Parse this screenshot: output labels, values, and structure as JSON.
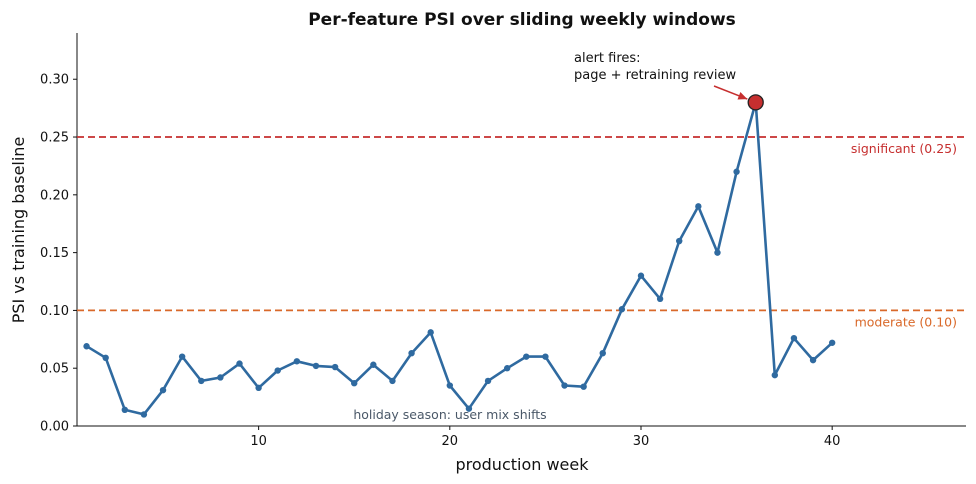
{
  "chart_data": {
    "type": "line",
    "title": "Per-feature PSI over sliding weekly windows",
    "xlabel": "production week",
    "ylabel": "PSI vs training baseline",
    "xlim": [
      0.5,
      47
    ],
    "ylim": [
      0,
      0.34
    ],
    "xticks": [
      10,
      20,
      30,
      40
    ],
    "yticks": [
      0.0,
      0.05,
      0.1,
      0.15,
      0.2,
      0.25,
      0.3
    ],
    "grid": false,
    "line_color": "#2f6aa0",
    "x": [
      1,
      2,
      3,
      4,
      5,
      6,
      7,
      8,
      9,
      10,
      11,
      12,
      13,
      14,
      15,
      16,
      17,
      18,
      19,
      20,
      21,
      22,
      23,
      24,
      25,
      26,
      27,
      28,
      29,
      30,
      31,
      32,
      33,
      34,
      35,
      36,
      37,
      38,
      39,
      40
    ],
    "y": [
      0.069,
      0.059,
      0.014,
      0.01,
      0.031,
      0.06,
      0.039,
      0.042,
      0.054,
      0.033,
      0.048,
      0.056,
      0.052,
      0.051,
      0.037,
      0.053,
      0.039,
      0.063,
      0.081,
      0.035,
      0.015,
      0.039,
      0.05,
      0.06,
      0.06,
      0.035,
      0.034,
      0.063,
      0.101,
      0.13,
      0.11,
      0.16,
      0.19,
      0.15,
      0.22,
      0.28,
      0.044,
      0.076,
      0.057,
      0.072
    ],
    "thresholds": [
      {
        "value": 0.25,
        "label": "significant (0.25)",
        "color": "#c62f2f"
      },
      {
        "value": 0.1,
        "label": "moderate (0.10)",
        "color": "#d9692a"
      }
    ],
    "alert_point": {
      "x": 36,
      "y": 0.28,
      "color": "#c62f2f"
    },
    "annotations": {
      "alert_line1": "alert fires:",
      "alert_line2": "page + retraining review",
      "holiday": "holiday season: user mix shifts"
    },
    "holiday_color": "#4a5868"
  }
}
